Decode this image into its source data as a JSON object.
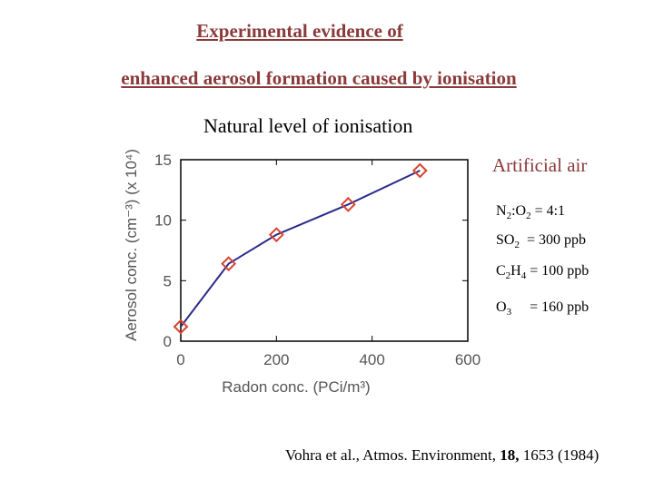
{
  "title_line1": "Experimental evidence of",
  "title_line2": "enhanced aerosol formation caused by ionisation",
  "subtitle": "Natural level of ionisation",
  "chart_data": {
    "type": "line",
    "xlabel": "Radon conc. (PCi/m³)",
    "ylabel": "Aerosol conc. (cm⁻³) (x 10⁴)",
    "xlim": [
      0,
      600
    ],
    "ylim": [
      0,
      15
    ],
    "xticks": [
      "0",
      "200",
      "400",
      "600"
    ],
    "yticks": [
      "0",
      "5",
      "10",
      "15"
    ],
    "x": [
      0,
      100,
      200,
      350,
      500
    ],
    "y": [
      1.2,
      6.4,
      8.8,
      11.3,
      14.1
    ],
    "grid": false,
    "line_color": "#2b2b8c",
    "marker_color": "#d9442e",
    "marker": "diamond"
  },
  "conditions": {
    "heading": "Artificial air",
    "n2o2": {
      "a": "N",
      "a_sub": "2",
      "sep": ":O",
      "b_sub": "2",
      "rest": " = 4:1"
    },
    "so2": {
      "a": "SO",
      "a_sub": "2",
      "rest": "  = 300 ppb"
    },
    "c2h4": {
      "a": "C",
      "a_sub": "2",
      "mid": "H",
      "mid_sub": "4",
      "rest": " = 100 ppb"
    },
    "o3": {
      "a": "O",
      "a_sub": "3",
      "rest": "     = 160 ppb"
    }
  },
  "citation": {
    "pre": "Vohra et al., Atmos. Environment, ",
    "vol": "18,",
    "post": " 1653 (1984)"
  }
}
